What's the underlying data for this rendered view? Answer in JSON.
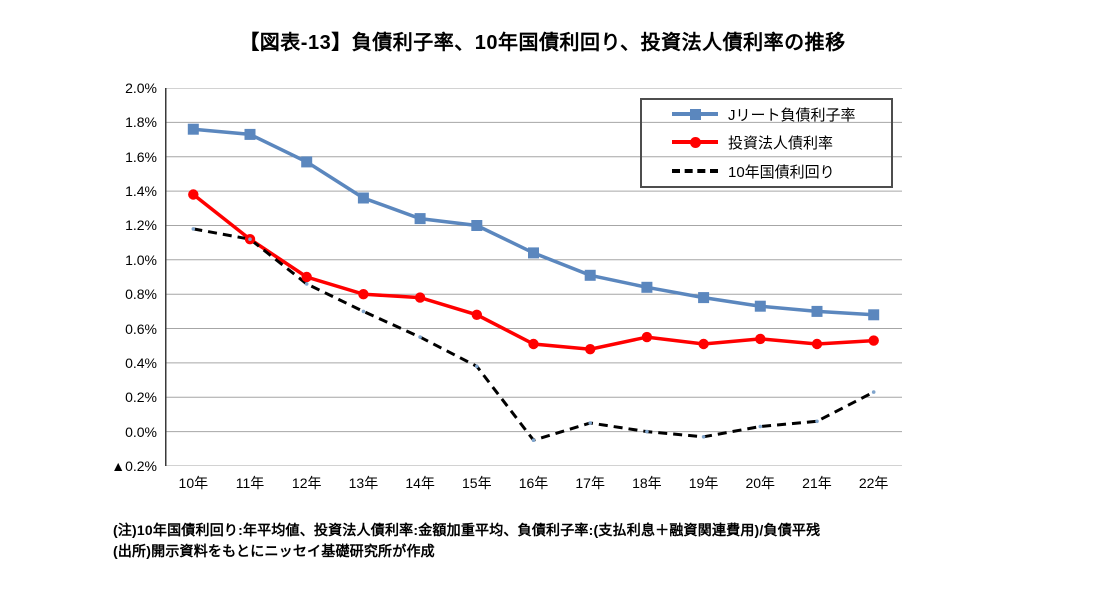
{
  "title": "【図表-13】負債利子率、10年国債利回り、投資法人債利率の推移",
  "chart_data": {
    "type": "line",
    "categories": [
      "10年",
      "11年",
      "12年",
      "13年",
      "14年",
      "15年",
      "16年",
      "17年",
      "18年",
      "19年",
      "20年",
      "21年",
      "22年"
    ],
    "series": [
      {
        "name": "Jリート負債利子率",
        "color": "#5b87be",
        "marker": "square",
        "line_style": "solid",
        "values": [
          1.76,
          1.73,
          1.57,
          1.36,
          1.24,
          1.2,
          1.04,
          0.91,
          0.84,
          0.78,
          0.73,
          0.7,
          0.68
        ]
      },
      {
        "name": "投資法人債利率",
        "color": "#ff0000",
        "marker": "circle",
        "line_style": "solid",
        "values": [
          1.38,
          1.12,
          0.9,
          0.8,
          0.78,
          0.68,
          0.51,
          0.48,
          0.55,
          0.51,
          0.54,
          0.51,
          0.53
        ]
      },
      {
        "name": "10年国債利回り",
        "color": "#000000",
        "marker": "dot",
        "marker_color": "#7fa4cc",
        "line_style": "dashed",
        "values": [
          1.18,
          1.12,
          0.86,
          0.7,
          0.55,
          0.38,
          -0.05,
          0.05,
          0.0,
          -0.03,
          0.03,
          0.06,
          0.23
        ]
      }
    ],
    "ylim": [
      -0.2,
      2.0
    ],
    "y_tick_step": 0.2,
    "y_tick_labels": [
      "2.0%",
      "1.8%",
      "1.6%",
      "1.4%",
      "1.2%",
      "1.0%",
      "0.8%",
      "0.6%",
      "0.4%",
      "0.2%",
      "0.0%",
      "▲0.2%"
    ],
    "grid": true,
    "legend_position": "top-right"
  },
  "footnotes": [
    "(注)10年国債利回り:年平均値、投資法人債利率:金額加重平均、負債利子率:(支払利息＋融資関連費用)/負債平残",
    "(出所)開示資料をもとにニッセイ基礎研究所が作成"
  ],
  "colors": {
    "grid": "#a6a6a6",
    "axis": "#3a3a3a",
    "legend_border": "#4d4d4d",
    "background": "#ffffff"
  }
}
